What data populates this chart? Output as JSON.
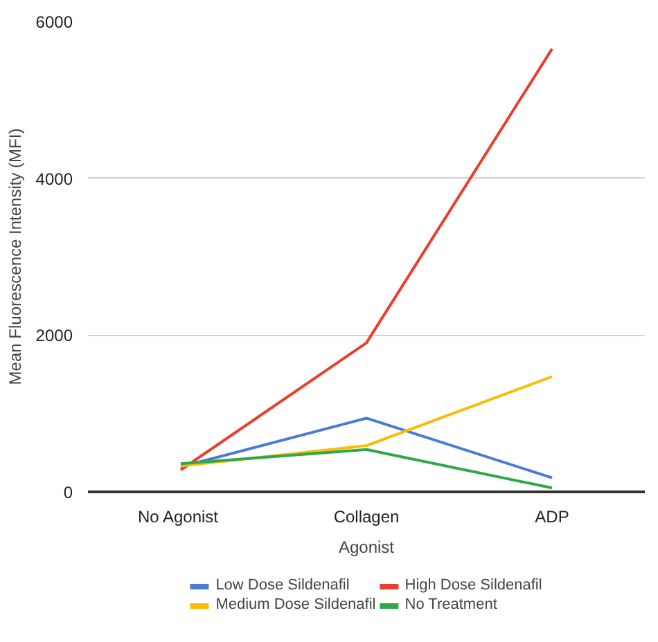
{
  "chart_data": {
    "type": "line",
    "xlabel": "Agonist",
    "ylabel": "Mean Fluorescence Intensity (MFI)",
    "categories": [
      "No  Agonist",
      "Collagen",
      "ADP"
    ],
    "series": [
      {
        "name": "Low Dose Sildenafil",
        "color": "#4a7bd4",
        "values": [
          320,
          940,
          180
        ]
      },
      {
        "name": "High Dose Sildenafil",
        "color": "#ea3e2f",
        "values": [
          280,
          1900,
          5650
        ]
      },
      {
        "name": "Medium Dose Sildenafil",
        "color": "#fbbc04",
        "values": [
          330,
          590,
          1470
        ]
      },
      {
        "name": "No Treatment",
        "color": "#2da84a",
        "values": [
          360,
          540,
          50
        ]
      }
    ],
    "ylim": [
      0,
      6000
    ],
    "yticks": [
      0,
      2000,
      4000,
      6000
    ],
    "grid": "y",
    "legend": "bottom",
    "marker": "none",
    "line_style": "solid"
  }
}
